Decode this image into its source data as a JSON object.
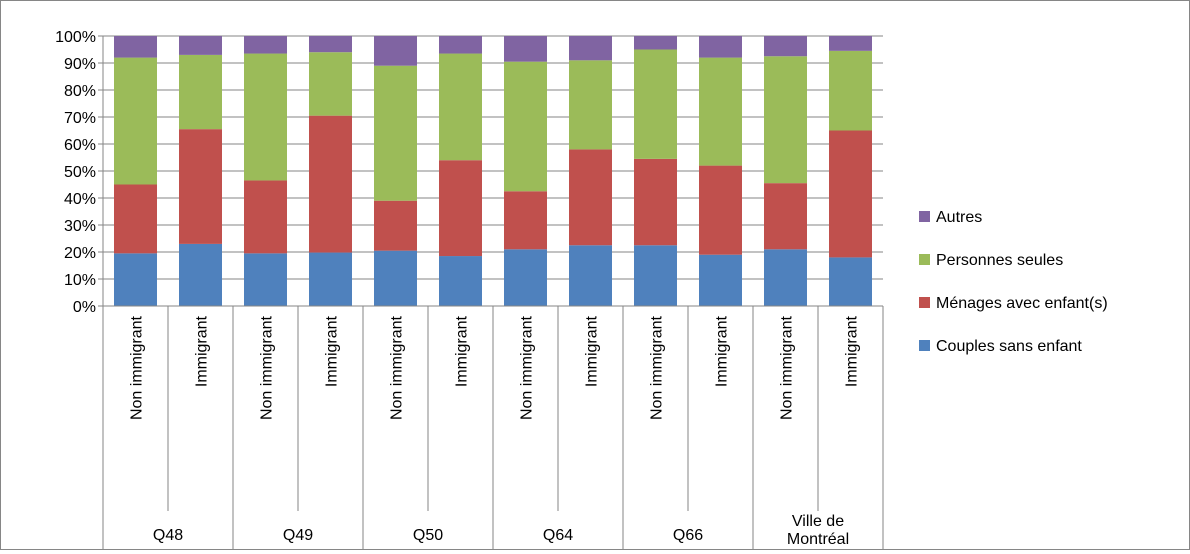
{
  "chart_data": {
    "type": "bar",
    "stacked": true,
    "normalized": true,
    "title": "",
    "xlabel": "",
    "ylabel": "",
    "ylim": [
      0,
      100
    ],
    "yticks": [
      "0%",
      "10%",
      "20%",
      "30%",
      "40%",
      "50%",
      "60%",
      "70%",
      "80%",
      "90%",
      "100%"
    ],
    "groups": [
      "Q48",
      "Q49",
      "Q50",
      "Q64",
      "Q66",
      "Ville de Montréal"
    ],
    "categories": [
      "Non immigrant",
      "Immigrant",
      "Non immigrant",
      "Immigrant",
      "Non immigrant",
      "Immigrant",
      "Non immigrant",
      "Immigrant",
      "Non immigrant",
      "Immigrant",
      "Non immigrant",
      "Immigrant"
    ],
    "series": [
      {
        "name": "Couples sans enfant",
        "color": "#4F81BD",
        "values": [
          19.5,
          23,
          19.5,
          19.8,
          20.5,
          18.5,
          21,
          22.5,
          22.5,
          19,
          21,
          18
        ]
      },
      {
        "name": "Ménages avec enfant(s)",
        "color": "#C0504D",
        "values": [
          25.5,
          42.5,
          27,
          50.7,
          18.5,
          35.5,
          21.5,
          35.5,
          32,
          33,
          24.5,
          47
        ]
      },
      {
        "name": "Personnes seules",
        "color": "#9BBB59",
        "values": [
          47,
          27.5,
          47,
          23.5,
          50,
          39.5,
          48,
          33,
          40.5,
          40,
          47,
          29.5
        ]
      },
      {
        "name": "Autres",
        "color": "#8064A2",
        "values": [
          8,
          7,
          6.5,
          6,
          11,
          6.5,
          9.5,
          9,
          5,
          8,
          7.5,
          5.5
        ]
      }
    ],
    "legend_position": "right",
    "legend_order": [
      "Autres",
      "Personnes seules",
      "Ménages avec enfant(s)",
      "Couples sans enfant"
    ],
    "grid": true
  }
}
